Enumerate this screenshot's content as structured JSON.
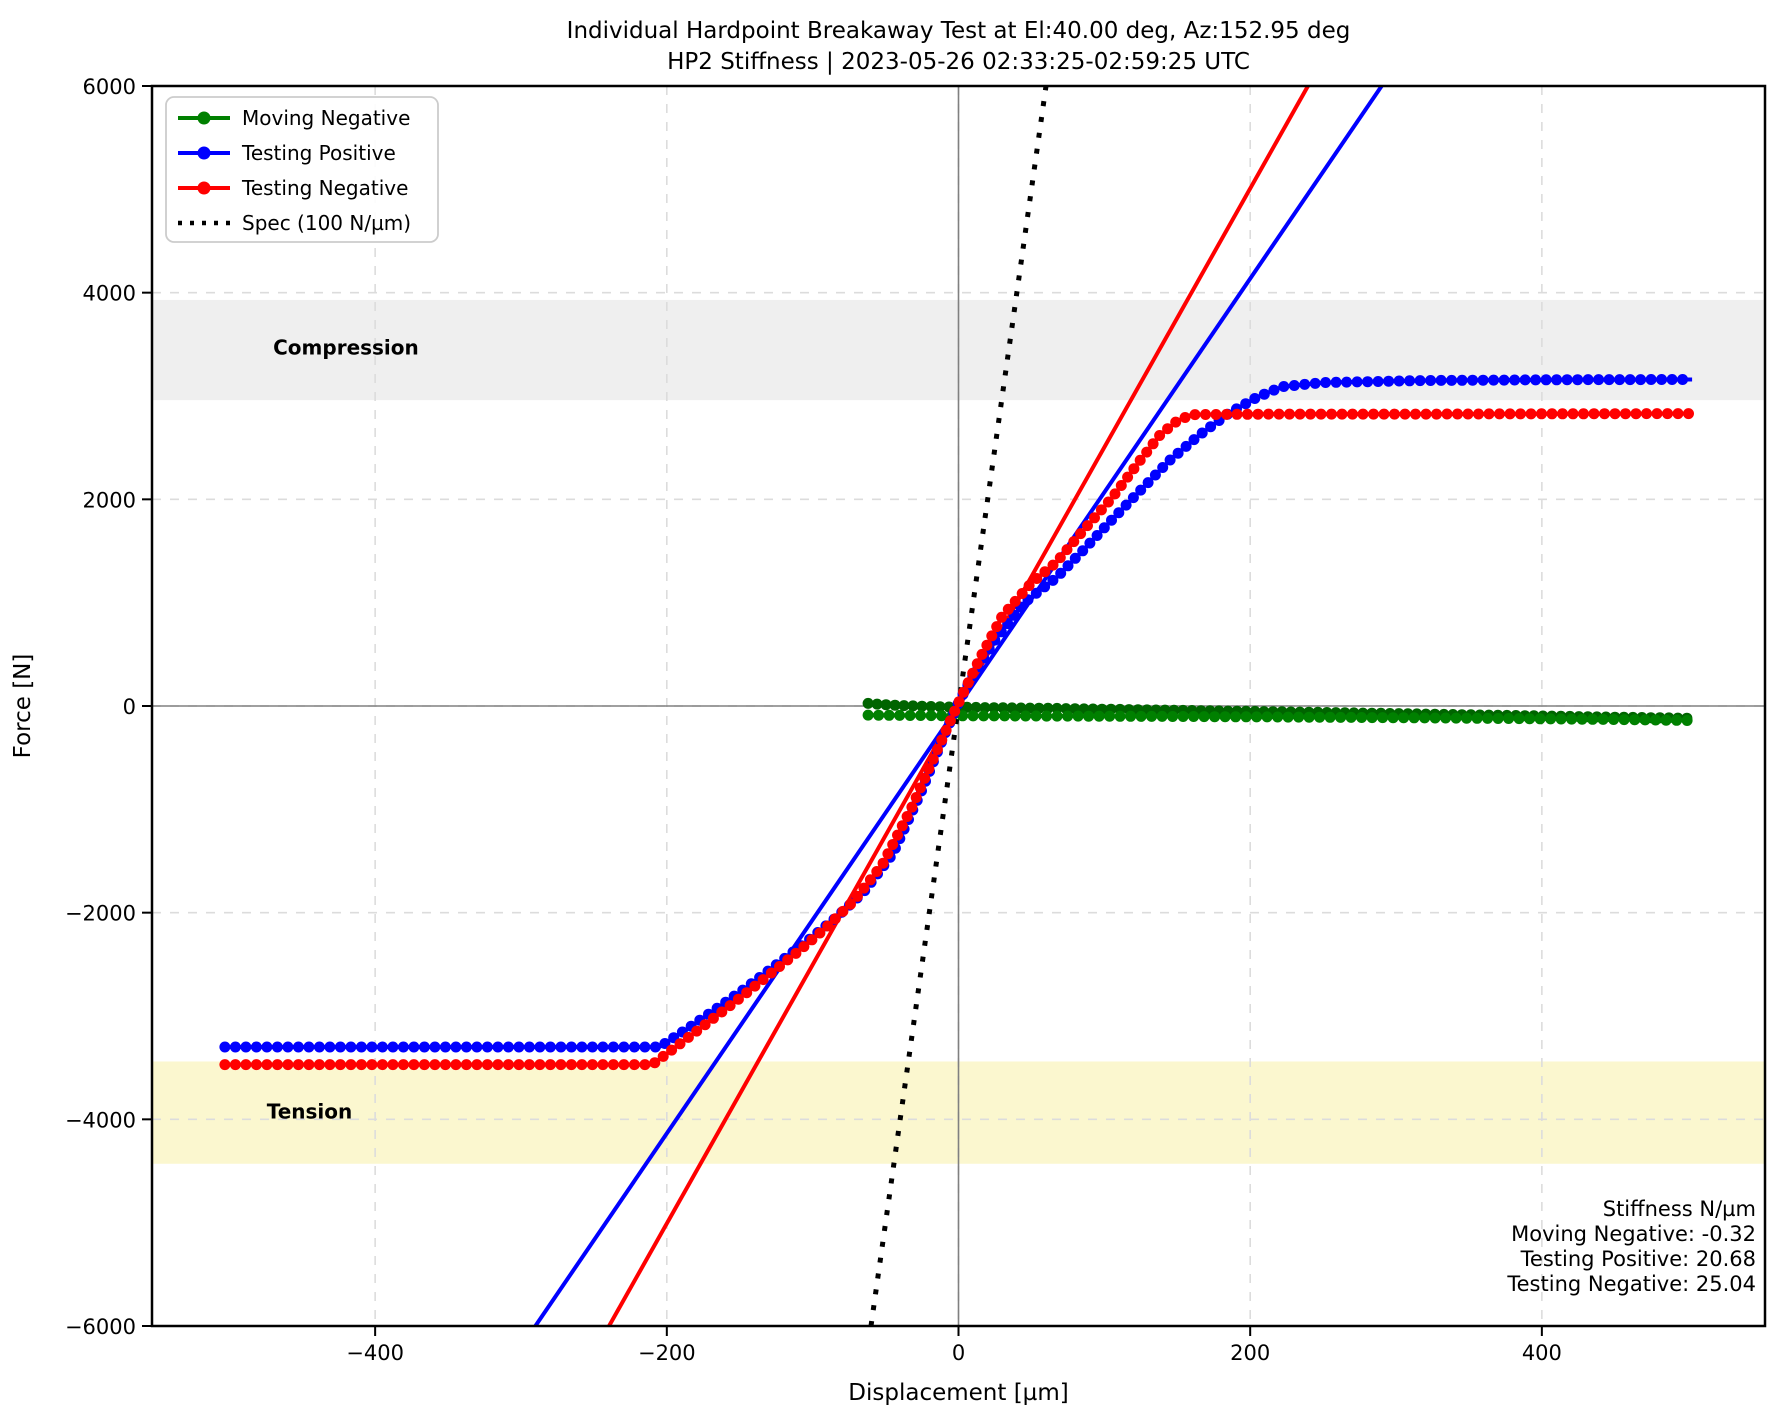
{
  "chart_data": {
    "type": "line",
    "title": "Individual Hardpoint Breakaway Test at El:40.00 deg, Az:152.95 deg",
    "subtitle": "HP2 Stiffness | 2023-05-26 02:33:25-02:59:25 UTC",
    "xlabel": "Displacement [µm]",
    "ylabel": "Force [N]",
    "xlim": [
      -553,
      553
    ],
    "ylim": [
      -6000,
      6000
    ],
    "xticks": [
      -400,
      -200,
      0,
      200,
      400
    ],
    "xtick_labels": [
      "−400",
      "−200",
      "0",
      "200",
      "400"
    ],
    "yticks": [
      -6000,
      -4000,
      -2000,
      0,
      2000,
      4000,
      6000
    ],
    "ytick_labels": [
      "−6000",
      "−4000",
      "−2000",
      "0",
      "2000",
      "4000",
      "6000"
    ],
    "grid": true,
    "zero_lines": true,
    "colors": {
      "moving_negative": "#008000",
      "moving_negative_dark": "#006400",
      "testing_positive": "#0000ff",
      "testing_negative": "#ff0000",
      "spec": "#000000",
      "grid": "#dcdcdc",
      "zero_line": "#808080",
      "compression_band": "#efefef",
      "tension_band": "#fbf7cf"
    },
    "bands": [
      {
        "name": "compression",
        "label": "Compression",
        "y0": 2960,
        "y1": 3930,
        "label_x": -420,
        "label_y": 3400
      },
      {
        "name": "tension",
        "label": "Tension",
        "y0": -4430,
        "y1": -3440,
        "label_x": -445,
        "label_y": -3990
      }
    ],
    "series": [
      {
        "name": "Moving Negative (upper pass)",
        "key": "moving_negative_dark",
        "marker_step": 9,
        "points": [
          [
            -62,
            25
          ],
          [
            -45,
            8
          ],
          [
            -20,
            -4
          ],
          [
            0,
            -12
          ],
          [
            60,
            -22
          ],
          [
            150,
            -42
          ],
          [
            250,
            -62
          ],
          [
            350,
            -85
          ],
          [
            450,
            -108
          ],
          [
            500,
            -118
          ]
        ]
      },
      {
        "name": "Moving Negative",
        "key": "moving_negative",
        "marker_step": 10.5,
        "points": [
          [
            -62,
            -88
          ],
          [
            -30,
            -92
          ],
          [
            0,
            -95
          ],
          [
            80,
            -98
          ],
          [
            160,
            -102
          ],
          [
            240,
            -108
          ],
          [
            320,
            -115
          ],
          [
            400,
            -124
          ],
          [
            460,
            -132
          ],
          [
            500,
            -140
          ]
        ]
      },
      {
        "name": "Testing Positive",
        "key": "testing_positive",
        "marker_step": 10.5,
        "points": [
          [
            -503,
            -3300
          ],
          [
            -205,
            -3300
          ],
          [
            -185,
            -3115
          ],
          [
            -165,
            -2920
          ],
          [
            -145,
            -2720
          ],
          [
            -125,
            -2505
          ],
          [
            -105,
            -2290
          ],
          [
            -85,
            -2060
          ],
          [
            -65,
            -1800
          ],
          [
            -45,
            -1430
          ],
          [
            -25,
            -810
          ],
          [
            -10,
            -290
          ],
          [
            0,
            30
          ],
          [
            12,
            350
          ],
          [
            25,
            640
          ],
          [
            45,
            1000
          ],
          [
            67,
            1240
          ],
          [
            85,
            1500
          ],
          [
            105,
            1800
          ],
          [
            125,
            2090
          ],
          [
            145,
            2380
          ],
          [
            165,
            2620
          ],
          [
            185,
            2830
          ],
          [
            205,
            2990
          ],
          [
            222,
            3090
          ],
          [
            250,
            3130
          ],
          [
            320,
            3150
          ],
          [
            420,
            3158
          ],
          [
            503,
            3160
          ]
        ]
      },
      {
        "name": "Testing Negative",
        "key": "testing_negative",
        "marker_step": 10.5,
        "points": [
          [
            -503,
            -3470
          ],
          [
            -210,
            -3470
          ],
          [
            -192,
            -3280
          ],
          [
            -172,
            -3065
          ],
          [
            -152,
            -2850
          ],
          [
            -132,
            -2625
          ],
          [
            -112,
            -2400
          ],
          [
            -92,
            -2160
          ],
          [
            -72,
            -1890
          ],
          [
            -52,
            -1530
          ],
          [
            -32,
            -980
          ],
          [
            -16,
            -470
          ],
          [
            0,
            30
          ],
          [
            15,
            470
          ],
          [
            30,
            870
          ],
          [
            50,
            1190
          ],
          [
            67,
            1390
          ],
          [
            85,
            1690
          ],
          [
            105,
            2010
          ],
          [
            122,
            2330
          ],
          [
            138,
            2620
          ],
          [
            150,
            2760
          ],
          [
            160,
            2820
          ],
          [
            220,
            2825
          ],
          [
            320,
            2825
          ],
          [
            420,
            2828
          ],
          [
            503,
            2830
          ]
        ]
      }
    ],
    "fit_lines": [
      {
        "name": "Testing Positive fit",
        "key": "testing_positive",
        "slope": 20.68,
        "intercept": 0,
        "dotted": false
      },
      {
        "name": "Testing Negative fit",
        "key": "testing_negative",
        "slope": 25.04,
        "intercept": 0,
        "dotted": false
      },
      {
        "name": "Spec",
        "key": "spec",
        "slope": 100,
        "intercept": 0,
        "dotted": true
      }
    ],
    "legend": [
      {
        "label": "Moving Negative",
        "key": "moving_negative",
        "style": "line-marker"
      },
      {
        "label": "Testing Positive",
        "key": "testing_positive",
        "style": "line-marker"
      },
      {
        "label": "Testing Negative",
        "key": "testing_negative",
        "style": "line-marker"
      },
      {
        "label": "Spec (100 N/µm)",
        "key": "spec",
        "style": "dotted"
      }
    ],
    "annotation": {
      "lines": [
        "Stiffness N/µm",
        "Moving Negative: -0.32",
        "Testing Positive: 20.68",
        "Testing Negative: 25.04"
      ]
    }
  }
}
